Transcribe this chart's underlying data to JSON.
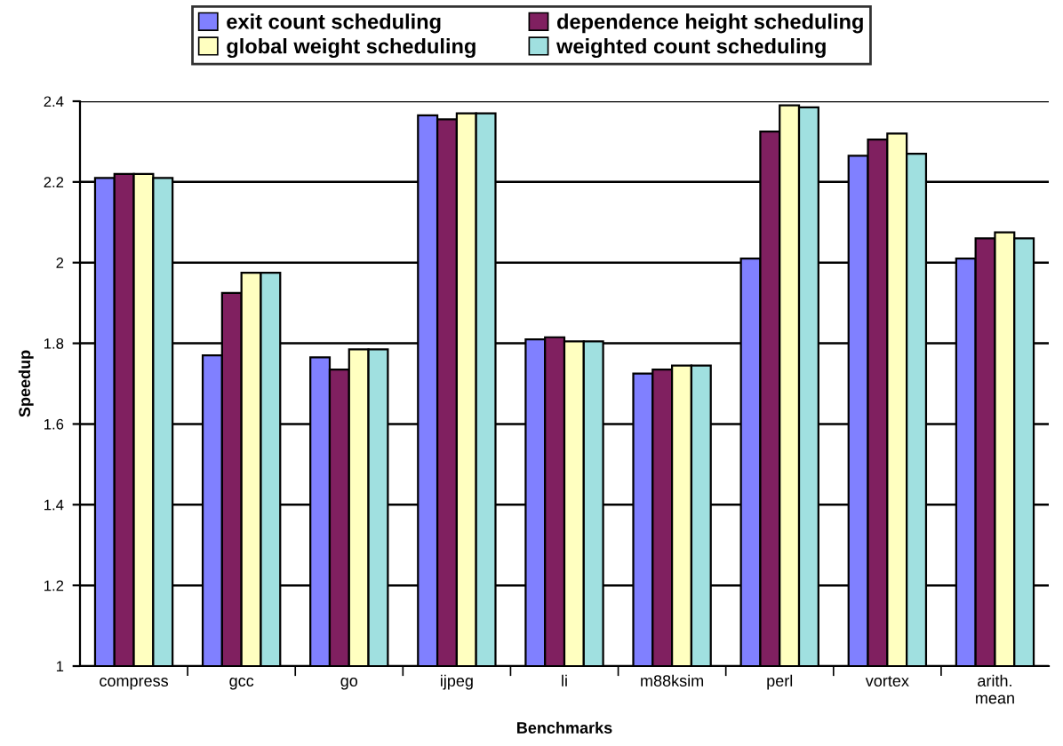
{
  "chart_data": {
    "type": "bar",
    "xlabel": "Benchmarks",
    "ylabel": "Speedup",
    "categories": [
      "compress",
      "gcc",
      "go",
      "ijpeg",
      "li",
      "m88ksim",
      "perl",
      "vortex",
      "arith.\nmean"
    ],
    "series": [
      {
        "name": "exit count scheduling",
        "color": "#8080ff",
        "values": [
          2.21,
          1.77,
          1.765,
          2.365,
          1.81,
          1.725,
          2.01,
          2.265,
          2.01
        ]
      },
      {
        "name": "dependence height scheduling",
        "color": "#802060",
        "values": [
          2.22,
          1.925,
          1.735,
          2.355,
          1.815,
          1.735,
          2.325,
          2.305,
          2.06
        ]
      },
      {
        "name": "global weight scheduling",
        "color": "#ffffc0",
        "values": [
          2.22,
          1.975,
          1.785,
          2.37,
          1.805,
          1.745,
          2.39,
          2.32,
          2.075
        ]
      },
      {
        "name": "weighted count scheduling",
        "color": "#a0e0e0",
        "values": [
          2.21,
          1.975,
          1.785,
          2.37,
          1.805,
          1.745,
          2.385,
          2.27,
          2.06
        ]
      }
    ],
    "ylim": [
      1,
      2.4
    ],
    "yticks": [
      1,
      1.2,
      1.4,
      1.6,
      1.8,
      2,
      2.2,
      2.4
    ],
    "grid": "y",
    "legend": "top"
  }
}
